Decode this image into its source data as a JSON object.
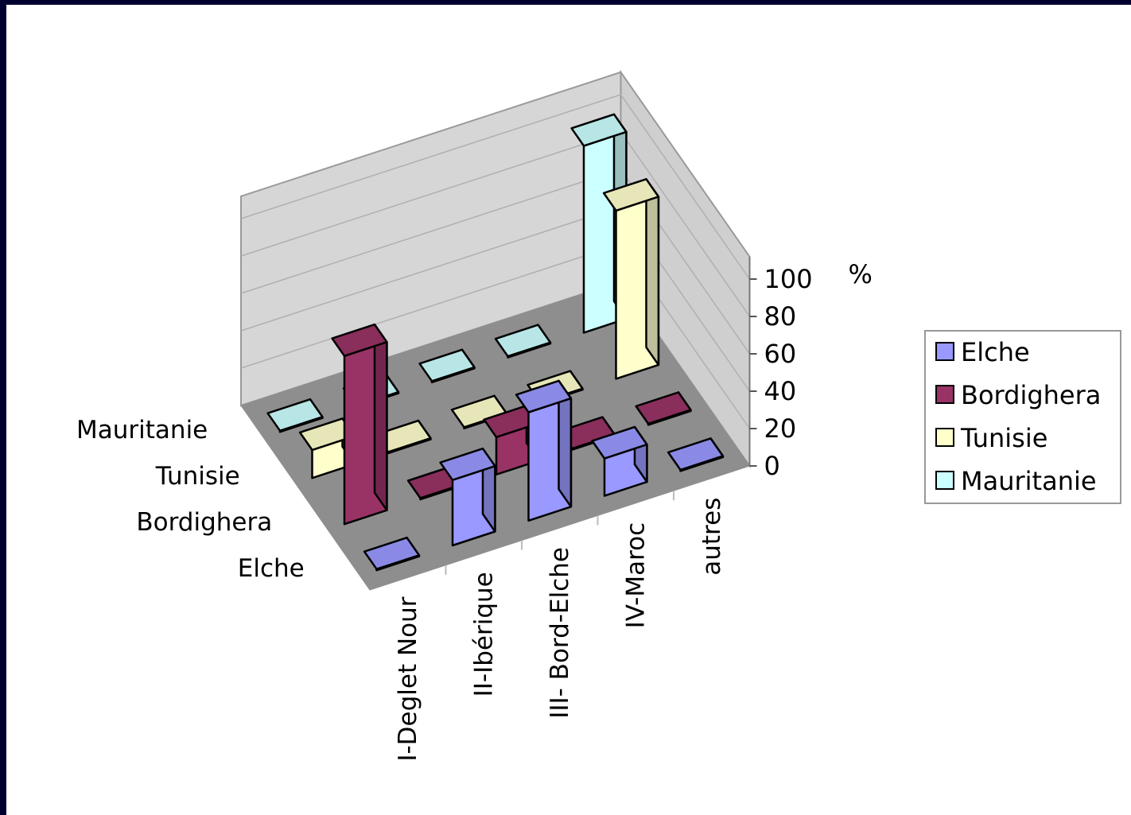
{
  "chart_data": {
    "type": "bar",
    "subtype": "3d-column",
    "ylabel": "%",
    "ylim": [
      0,
      100
    ],
    "yticks": [
      "0",
      "20",
      "40",
      "60",
      "80",
      "100"
    ],
    "categories": [
      "I-Deglet Nour",
      "II-Ibérique",
      "III- Bord-Elche",
      "IV-Maroc",
      "autres"
    ],
    "series": [
      {
        "name": "Elche",
        "color": "#9999ff",
        "values": [
          0,
          35,
          58,
          20,
          0
        ]
      },
      {
        "name": "Bordighera",
        "color": "#993366",
        "values": [
          90,
          0,
          20,
          0,
          0
        ]
      },
      {
        "name": "Tunisie",
        "color": "#ffffcc",
        "values": [
          15,
          0,
          0,
          0,
          90
        ]
      },
      {
        "name": "Mauritanie",
        "color": "#ccffff",
        "values": [
          0,
          0,
          0,
          0,
          100
        ]
      }
    ],
    "grid": true,
    "legend_position": "right"
  }
}
